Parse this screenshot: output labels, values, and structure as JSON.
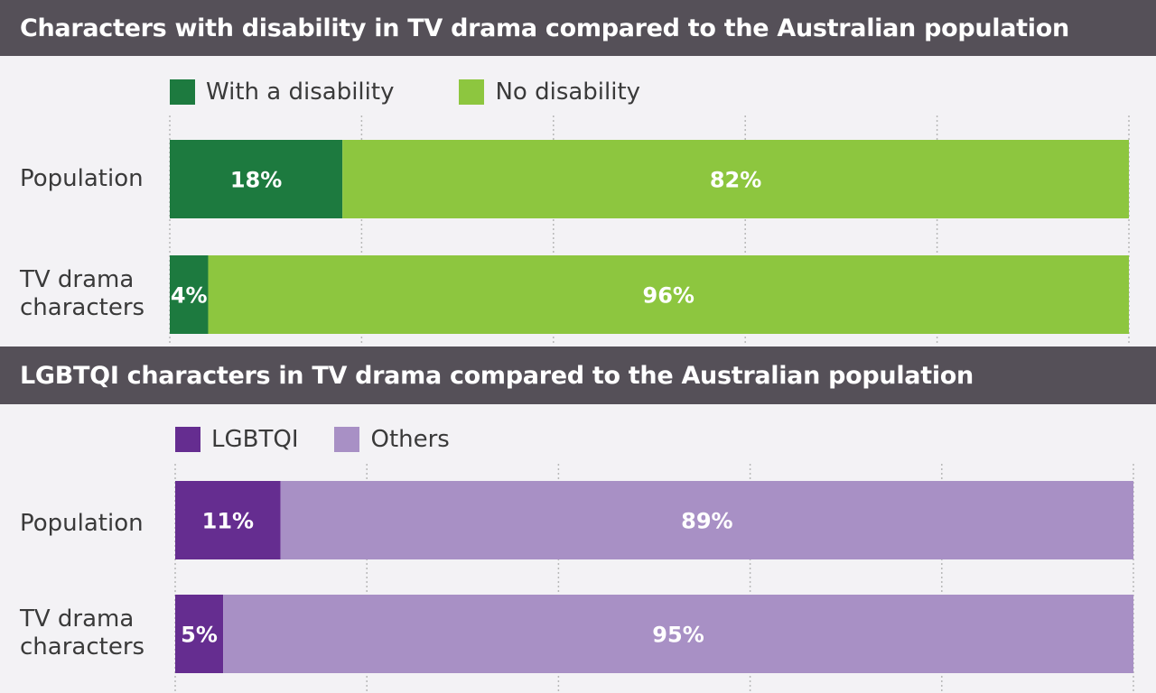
{
  "chart_data": [
    {
      "type": "bar",
      "orientation": "horizontal",
      "stacked": true,
      "title": "Characters with disability in TV drama compared to the Australian population",
      "categories": [
        "Population",
        "TV drama characters"
      ],
      "series": [
        {
          "name": "With a disability",
          "values": [
            18,
            4
          ],
          "labels": [
            "18%",
            "4%"
          ],
          "color": "#1d7a3f"
        },
        {
          "name": "No disability",
          "values": [
            82,
            96
          ],
          "labels": [
            "82%",
            "96%"
          ],
          "color": "#8dc63f"
        }
      ],
      "xlim": [
        0,
        100
      ],
      "grid": true,
      "legend": "top-left"
    },
    {
      "type": "bar",
      "orientation": "horizontal",
      "stacked": true,
      "title": "LGBTQI characters in TV drama compared to the Australian population",
      "categories": [
        "Population",
        "TV drama characters"
      ],
      "series": [
        {
          "name": "LGBTQI",
          "values": [
            11,
            5
          ],
          "labels": [
            "11%",
            "5%"
          ],
          "color": "#652d90"
        },
        {
          "name": "Others",
          "values": [
            89,
            95
          ],
          "labels": [
            "89%",
            "95%"
          ],
          "color": "#a890c5"
        }
      ],
      "xlim": [
        0,
        100
      ],
      "grid": true,
      "legend": "top-left"
    }
  ]
}
